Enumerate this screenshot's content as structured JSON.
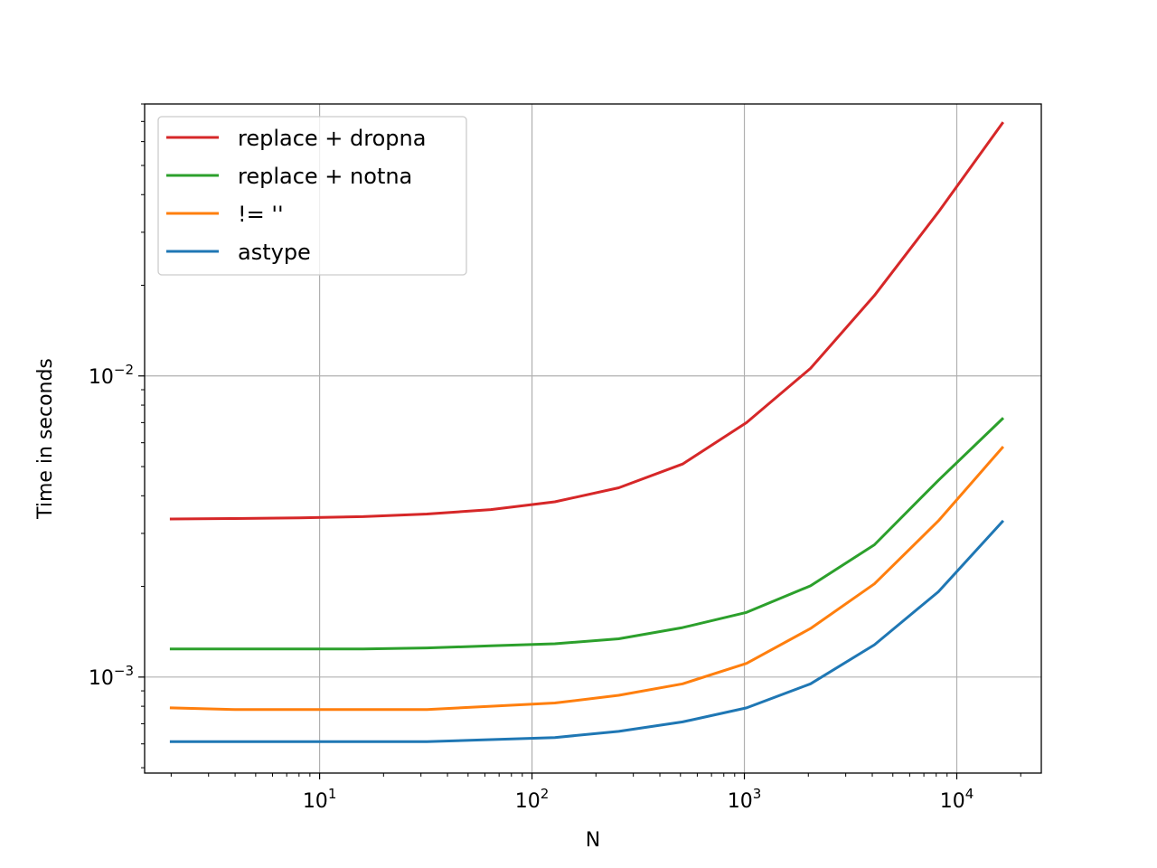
{
  "chart_data": {
    "type": "line",
    "title": "",
    "xlabel": "N",
    "ylabel": "Time in seconds",
    "xscale": "log",
    "yscale": "log",
    "xlim": [
      1.5,
      25000
    ],
    "ylim": [
      0.00048,
      0.08
    ],
    "grid": true,
    "legend_position": "top-left",
    "x_ticks": [
      {
        "value": 10,
        "base": "10",
        "exp": "1"
      },
      {
        "value": 100,
        "base": "10",
        "exp": "2"
      },
      {
        "value": 1000,
        "base": "10",
        "exp": "3"
      },
      {
        "value": 10000,
        "base": "10",
        "exp": "4"
      }
    ],
    "y_ticks": [
      {
        "value": 0.001,
        "base": "10",
        "exp": "−3"
      },
      {
        "value": 0.01,
        "base": "10",
        "exp": "−2"
      }
    ],
    "x": [
      2,
      4,
      8,
      16,
      32,
      64,
      128,
      256,
      512,
      1024,
      2048,
      4096,
      8192,
      16384
    ],
    "series": [
      {
        "name": "replace + dropna",
        "color": "#d62728",
        "values": [
          0.00335,
          0.00336,
          0.00338,
          0.00341,
          0.00348,
          0.0036,
          0.00382,
          0.00425,
          0.0051,
          0.007,
          0.0106,
          0.0185,
          0.035,
          0.069
        ]
      },
      {
        "name": "replace + notna",
        "color": "#2ca02c",
        "values": [
          0.00124,
          0.00124,
          0.00124,
          0.00124,
          0.00125,
          0.00127,
          0.00129,
          0.00134,
          0.00146,
          0.00164,
          0.00201,
          0.00275,
          0.0045,
          0.0072
        ]
      },
      {
        "name": "!= ''",
        "color": "#ff7f0e",
        "values": [
          0.00079,
          0.00078,
          0.00078,
          0.00078,
          0.00078,
          0.0008,
          0.00082,
          0.00087,
          0.00095,
          0.00111,
          0.00145,
          0.00204,
          0.0033,
          0.00578
        ]
      },
      {
        "name": "astype",
        "color": "#1f77b4",
        "values": [
          0.00061,
          0.00061,
          0.00061,
          0.00061,
          0.00061,
          0.00062,
          0.00063,
          0.00066,
          0.00071,
          0.00079,
          0.00095,
          0.00128,
          0.00192,
          0.00328
        ]
      }
    ]
  }
}
